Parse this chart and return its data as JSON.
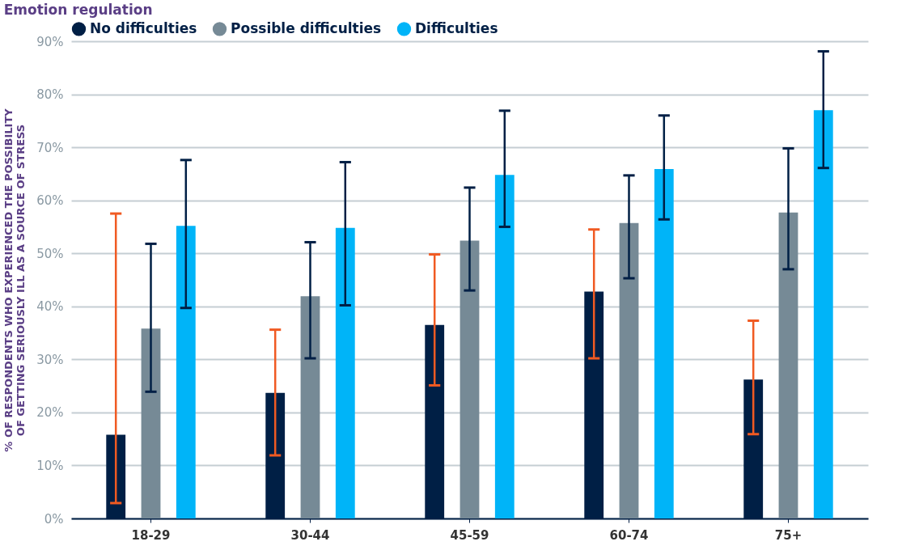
{
  "chart_data": {
    "type": "bar",
    "title": "Emotion regulation",
    "ylabel": "% OF RESPONDENTS WHO EXPERIENCED THE POSSIBILITY\nOF GETTING SERIOUSLY ILL AS A SOURCE OF STRESS",
    "categories": [
      "18-29",
      "30-44",
      "45-59",
      "60-74",
      "75+"
    ],
    "series": [
      {
        "name": "No difficulties",
        "color": "#001f45",
        "values": [
          15.8,
          23.7,
          36.5,
          42.8,
          26.2
        ],
        "errors": [
          [
            2.9,
            57.5
          ],
          [
            11.9,
            35.6
          ],
          [
            25.1,
            49.8
          ],
          [
            30.2,
            54.5
          ],
          [
            15.9,
            37.3
          ]
        ]
      },
      {
        "name": "Possible difficulties",
        "color": "#768a96",
        "values": [
          35.8,
          41.9,
          52.4,
          55.7,
          57.7
        ],
        "errors": [
          [
            23.9,
            51.8
          ],
          [
            30.2,
            52.1
          ],
          [
            43.0,
            62.4
          ],
          [
            45.3,
            64.7
          ],
          [
            47.0,
            69.8
          ]
        ]
      },
      {
        "name": "Difficulties",
        "color": "#00b4f8",
        "values": [
          55.2,
          54.8,
          64.8,
          65.9,
          77.0
        ],
        "errors": [
          [
            39.7,
            67.6
          ],
          [
            40.2,
            67.2
          ],
          [
            55.0,
            76.9
          ],
          [
            56.4,
            76.0
          ],
          [
            66.1,
            88.1
          ]
        ]
      }
    ],
    "ylim": [
      0,
      90
    ],
    "yticks": [
      {
        "value": 0,
        "label": "0%"
      },
      {
        "value": 10,
        "label": "10%"
      },
      {
        "value": 20,
        "label": "20%"
      },
      {
        "value": 30,
        "label": "30%"
      },
      {
        "value": 40,
        "label": "40%"
      },
      {
        "value": 50,
        "label": "50%"
      },
      {
        "value": 60,
        "label": "60%"
      },
      {
        "value": 70,
        "label": "70%"
      },
      {
        "value": 80,
        "label": "80%"
      },
      {
        "value": 90,
        "label": "90%"
      }
    ],
    "grid": "y",
    "legend": "top left"
  }
}
